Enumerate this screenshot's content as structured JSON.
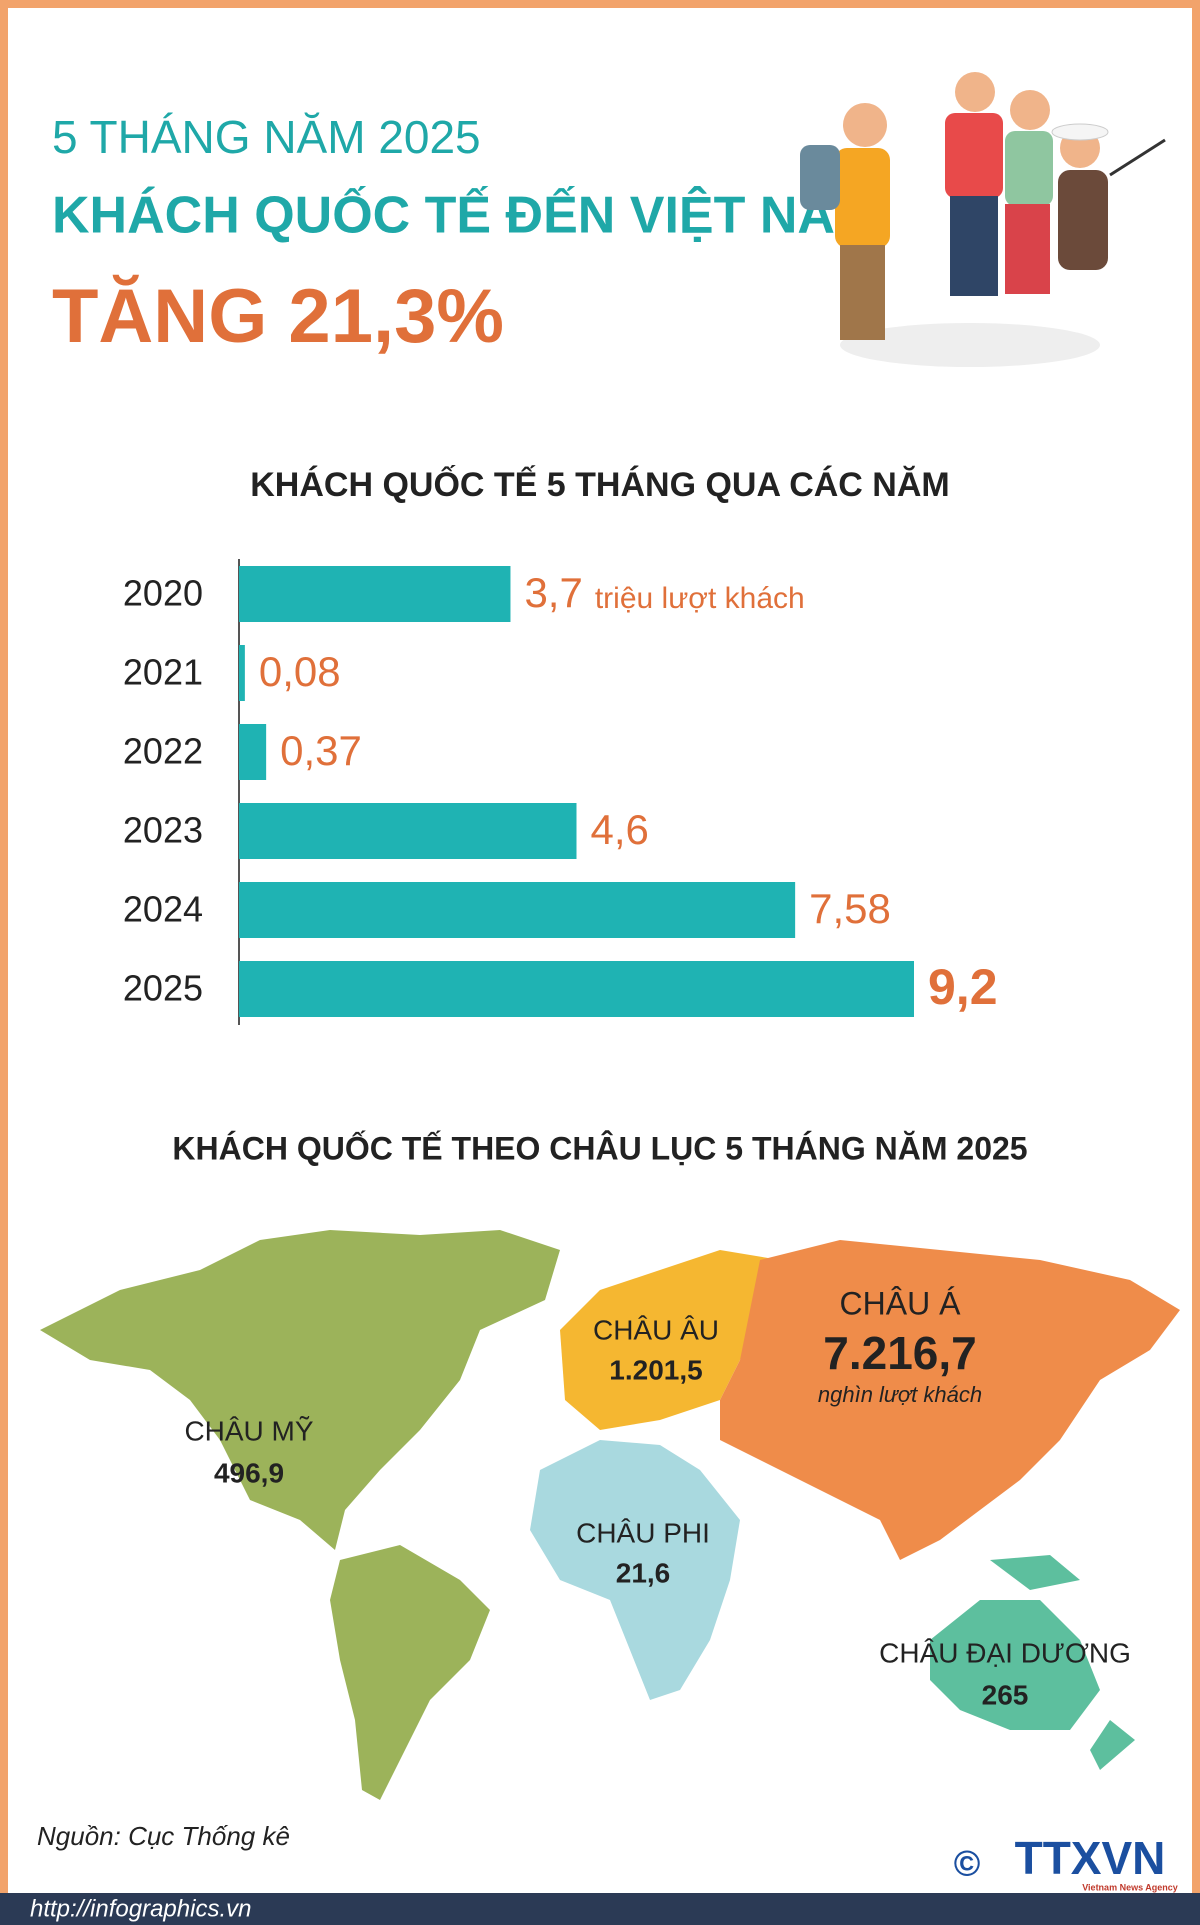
{
  "header": {
    "line1": "5 THÁNG NĂM 2025",
    "line2": "KHÁCH QUỐC TẾ ĐẾN VIỆT NAM",
    "line3": "TĂNG 21,3%"
  },
  "chart_data": {
    "type": "bar",
    "orientation": "horizontal",
    "title": "KHÁCH QUỐC TẾ 5 THÁNG QUA CÁC NĂM",
    "unit_label": "triệu lượt khách",
    "categories": [
      "2020",
      "2021",
      "2022",
      "2023",
      "2024",
      "2025"
    ],
    "values": [
      3.7,
      0.08,
      0.37,
      4.6,
      7.58,
      9.2
    ],
    "value_labels": [
      "3,7",
      "0,08",
      "0,37",
      "4,6",
      "7,58",
      "9,2"
    ],
    "color": "#1fb3b3",
    "label_color": "#e0703a"
  },
  "map": {
    "title": "KHÁCH QUỐC TẾ THEO CHÂU LỤC 5 THÁNG NĂM 2025",
    "unit_label": "nghìn lượt khách",
    "regions": [
      {
        "name": "CHÂU MỸ",
        "value": 496.9,
        "value_label": "496,9",
        "color": "#9cb35a"
      },
      {
        "name": "CHÂU ÂU",
        "value": 1201.5,
        "value_label": "1.201,5",
        "color": "#f5b731"
      },
      {
        "name": "CHÂU Á",
        "value": 7216.7,
        "value_label": "7.216,7",
        "color": "#ef8c4a"
      },
      {
        "name": "CHÂU PHI",
        "value": 21.6,
        "value_label": "21,6",
        "color": "#a9d9df"
      },
      {
        "name": "CHÂU ĐẠI DƯƠNG",
        "value": 265,
        "value_label": "265",
        "color": "#5dbf9e"
      }
    ]
  },
  "source": "Nguồn: Cục Thống kê",
  "footer": {
    "url": "http://infographics.vn",
    "logo": "TTXVN",
    "copyright": "©",
    "agency": "Vietnam News Agency"
  }
}
